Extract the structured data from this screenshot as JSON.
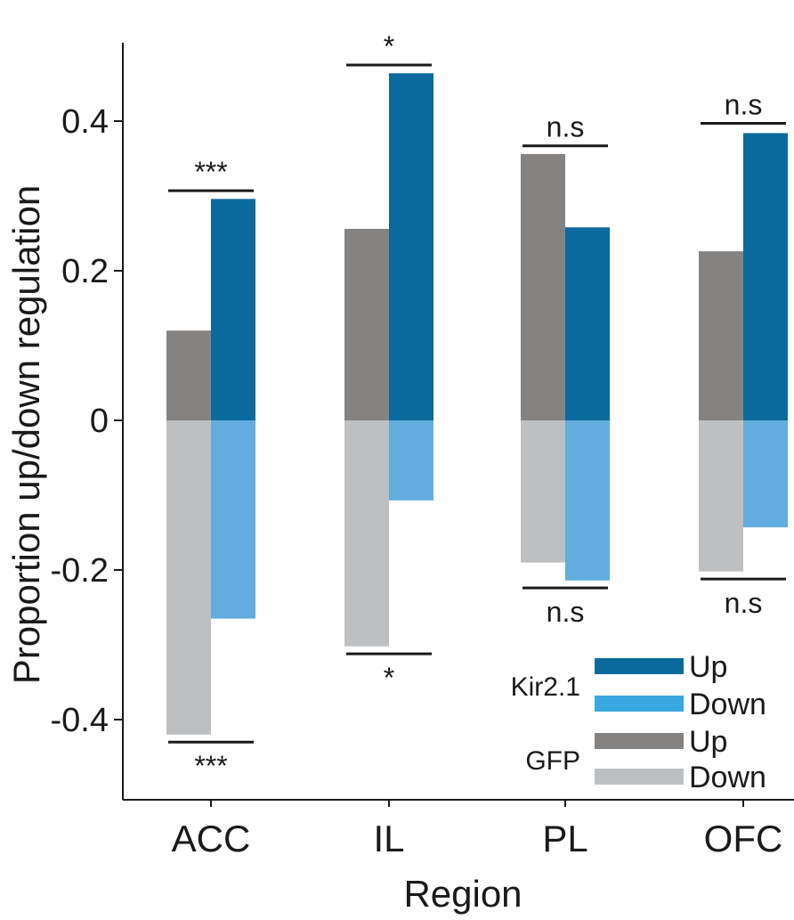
{
  "chart_data": {
    "type": "bar",
    "xlabel": "Region",
    "ylabel": "Proportion up/down regulation",
    "ylim": [
      -0.5,
      0.5
    ],
    "yticks": [
      {
        "value": 0.4,
        "label": "0.4"
      },
      {
        "value": 0.2,
        "label": "0.2"
      },
      {
        "value": 0,
        "label": "0"
      },
      {
        "value": -0.2,
        "label": "-0.2"
      },
      {
        "value": -0.4,
        "label": "-0.4"
      }
    ],
    "categories": [
      "ACC",
      "IL",
      "PL",
      "OFC"
    ],
    "series": [
      {
        "name": "GFP Up",
        "group": "GFP",
        "direction": "Up",
        "color": "#858382",
        "values": [
          0.12,
          0.256,
          0.356,
          0.226
        ]
      },
      {
        "name": "GFP Down",
        "group": "GFP",
        "direction": "Down",
        "color": "#bdbfc1",
        "values": [
          -0.42,
          -0.302,
          -0.19,
          -0.202
        ]
      },
      {
        "name": "Kir2.1 Up",
        "group": "Kir2.1",
        "direction": "Up",
        "color": "#0b6a9d",
        "values": [
          0.296,
          0.464,
          0.258,
          0.384
        ]
      },
      {
        "name": "Kir2.1 Down",
        "group": "Kir2.1",
        "direction": "Down",
        "color": "#62addd",
        "values": [
          -0.265,
          -0.107,
          -0.214,
          -0.143
        ]
      }
    ],
    "significance": [
      {
        "category": "ACC",
        "direction": "Up",
        "label": "***",
        "line_value": 0.307
      },
      {
        "category": "ACC",
        "direction": "Down",
        "label": "***",
        "line_value": -0.43
      },
      {
        "category": "IL",
        "direction": "Up",
        "label": "*",
        "line_value": 0.475
      },
      {
        "category": "IL",
        "direction": "Down",
        "label": "*",
        "line_value": -0.312
      },
      {
        "category": "PL",
        "direction": "Up",
        "label": "n.s",
        "line_value": 0.367
      },
      {
        "category": "PL",
        "direction": "Down",
        "label": "n.s",
        "line_value": -0.224
      },
      {
        "category": "OFC",
        "direction": "Up",
        "label": "n.s",
        "line_value": 0.397
      },
      {
        "category": "OFC",
        "direction": "Down",
        "label": "n.s",
        "line_value": -0.212
      }
    ],
    "legend": {
      "position": "bottom-right",
      "groups": [
        {
          "label": "Kir2.1",
          "entries": [
            {
              "label": "Up",
              "color": "#0b6a9d"
            },
            {
              "label": "Down",
              "color": "#3aa8e0"
            }
          ]
        },
        {
          "label": "GFP",
          "entries": [
            {
              "label": "Up",
              "color": "#858382"
            },
            {
              "label": "Down",
              "color": "#bdbfc1"
            }
          ]
        }
      ]
    }
  }
}
